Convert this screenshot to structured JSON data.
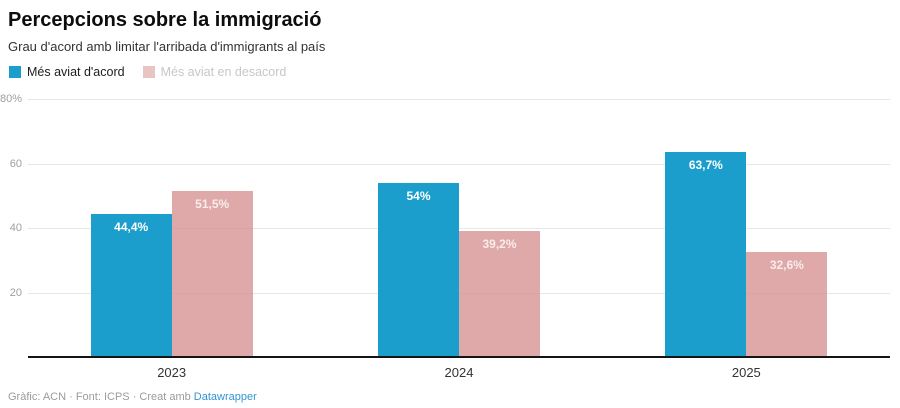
{
  "chart_data": {
    "type": "bar",
    "title": "Percepcions sobre la immigració",
    "subtitle": "Grau d'acord amb limitar l'arribada d'immigrants al país",
    "categories": [
      "2023",
      "2024",
      "2025"
    ],
    "series": [
      {
        "name": "Més aviat d'acord",
        "color": "#1b9ecc",
        "bar_opacity": 1,
        "legend_dimmed": false,
        "values": [
          44.4,
          54,
          63.7
        ],
        "value_labels": [
          "44,4%",
          "54%",
          "63,7%"
        ],
        "value_label_color": "#ffffff"
      },
      {
        "name": "Més aviat en desacord",
        "color": "#d89494",
        "bar_opacity": 0.8,
        "legend_dimmed": true,
        "values": [
          51.5,
          39.2,
          32.6
        ],
        "value_labels": [
          "51,5%",
          "39,2%",
          "32,6%"
        ],
        "value_label_color": "rgba(255,255,255,0.78)"
      }
    ],
    "ylim": [
      0,
      80
    ],
    "yticks": [
      80,
      60,
      40,
      20
    ],
    "ytick_labels": [
      "80%",
      "60",
      "40",
      "20"
    ],
    "grid": true,
    "legend_position": "top",
    "gridline_color": "#e7e7e7",
    "axis_line_color": "#141414"
  },
  "footer": {
    "credit": "Gràfic: ACN · Font: ICPS · Creat amb",
    "link": "Datawrapper"
  }
}
